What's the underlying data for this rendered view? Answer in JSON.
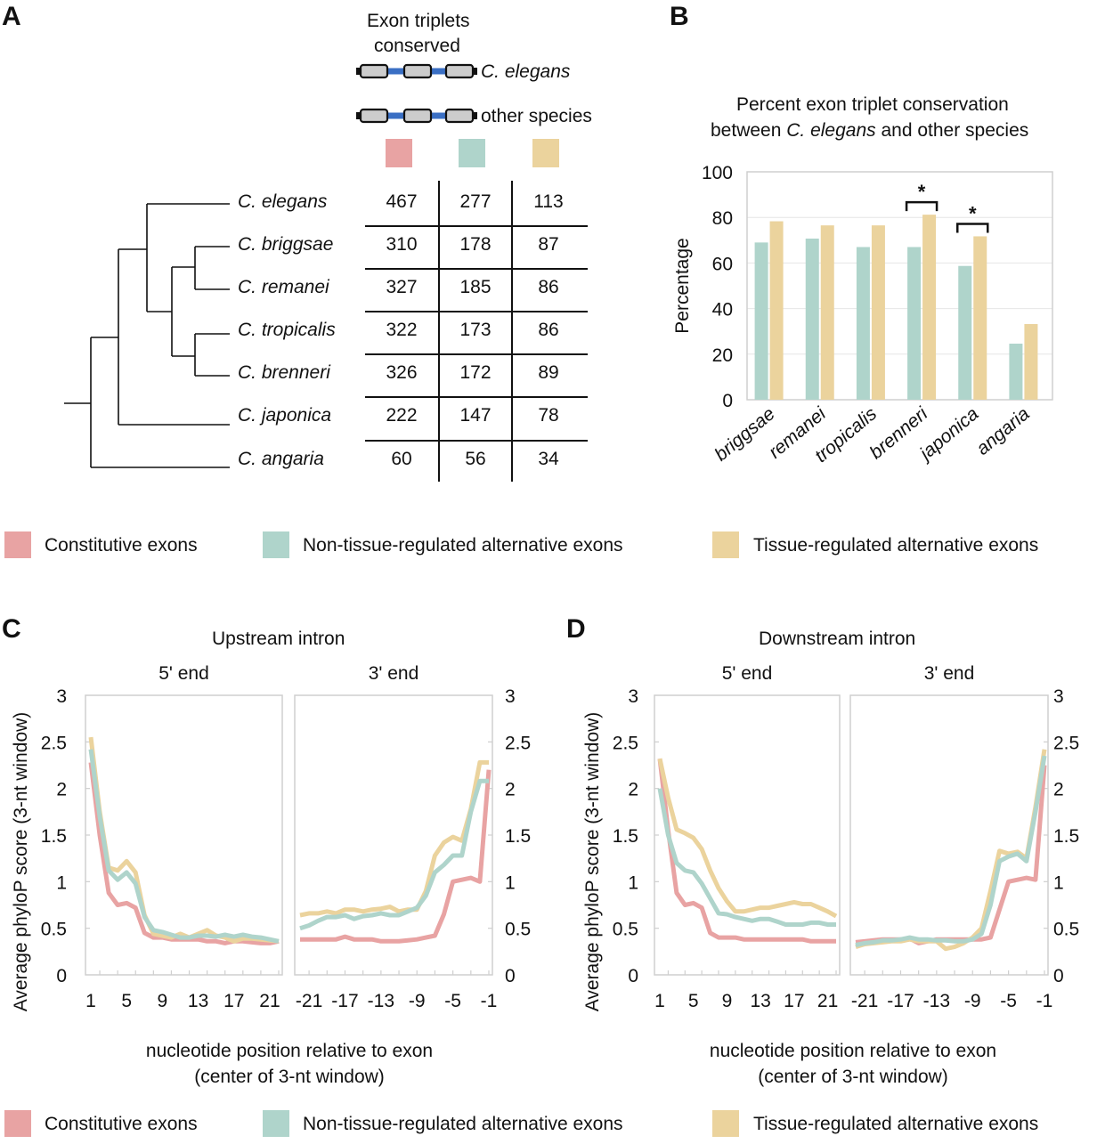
{
  "colors": {
    "constitutive": "#e8a3a3",
    "non_tissue": "#afd4cb",
    "tissue": "#ebd39d",
    "exon_fill": "#cccccc",
    "intron_blue": "#3a6fc4",
    "grid": "#e6e6e6",
    "frame": "#cfcfcf"
  },
  "panel_a": {
    "letter": "A",
    "header_line1": "Exon triplets",
    "header_line2": "conserved",
    "diagram_label_1": "C. elegans",
    "diagram_label_2": "other species",
    "species": [
      "C. elegans",
      "C. briggsae",
      "C. remanei",
      "C. tropicalis",
      "C. brenneri",
      "C. japonica",
      "C. angaria"
    ],
    "table": {
      "columns": [
        "Constitutive exons",
        "Non-tissue-regulated alternative exons",
        "Tissue-regulated alternative exons"
      ],
      "rows": [
        [
          467,
          277,
          113
        ],
        [
          310,
          178,
          87
        ],
        [
          327,
          185,
          86
        ],
        [
          322,
          173,
          86
        ],
        [
          326,
          172,
          89
        ],
        [
          222,
          147,
          78
        ],
        [
          60,
          56,
          34
        ]
      ]
    }
  },
  "legend": {
    "items": [
      {
        "key": "constitutive",
        "label": "Constitutive exons"
      },
      {
        "key": "non_tissue",
        "label": "Non-tissue-regulated alternative exons"
      },
      {
        "key": "tissue",
        "label": "Tissue-regulated alternative exons"
      }
    ]
  },
  "chart_data": [
    {
      "id": "B",
      "letter": "B",
      "type": "bar",
      "title_line1": "Percent exon triplet conservation",
      "title_line2_pre": "between ",
      "title_line2_it": "C. elegans",
      "title_line2_post": " and other species",
      "xlabel": "",
      "ylabel": "Percentage",
      "ylim": [
        0,
        100
      ],
      "yticks": [
        0,
        20,
        40,
        60,
        80,
        100
      ],
      "grid": true,
      "categories": [
        "briggsae",
        "remanei",
        "tropicalis",
        "brenneri",
        "japonica",
        "angaria"
      ],
      "series": [
        {
          "name": "Non-tissue-regulated alternative exons",
          "key": "non_tissue",
          "values": [
            69,
            70.7,
            67,
            67,
            58.7,
            24.6
          ]
        },
        {
          "name": "Tissue-regulated alternative exons",
          "key": "tissue",
          "values": [
            78.3,
            76.5,
            76.5,
            81.2,
            71.7,
            33.2
          ]
        }
      ],
      "annotations": [
        {
          "category": "brenneri",
          "text": "*",
          "type": "significance-bracket"
        },
        {
          "category": "japonica",
          "text": "*",
          "type": "significance-bracket"
        }
      ]
    },
    {
      "id": "C",
      "letter": "C",
      "type": "line",
      "title": "Upstream intron",
      "ylabel": "Average phyloP score (3-nt window)",
      "xlabel_line1": "nucleotide position relative to exon",
      "xlabel_line2": "(center of 3-nt window)",
      "ylim": [
        0,
        3
      ],
      "yticks": [
        0,
        0.5,
        1,
        1.5,
        2,
        2.5,
        3
      ],
      "ytick_labels": [
        "0",
        "0.5",
        "1",
        "1.5",
        "2",
        "2.5",
        "3"
      ],
      "subpanels": [
        {
          "title": "5' end",
          "x": [
            1,
            2,
            3,
            4,
            5,
            6,
            7,
            8,
            9,
            10,
            11,
            12,
            13,
            14,
            15,
            16,
            17,
            18,
            19,
            20,
            21,
            22
          ],
          "xtick_labels": [
            "1",
            "5",
            "9",
            "13",
            "17",
            "21"
          ],
          "xtick_values": [
            1,
            5,
            9,
            13,
            17,
            21
          ],
          "series": [
            {
              "key": "constitutive",
              "values": [
                2.28,
                1.5,
                0.88,
                0.75,
                0.77,
                0.72,
                0.45,
                0.4,
                0.4,
                0.38,
                0.38,
                0.38,
                0.38,
                0.36,
                0.36,
                0.34,
                0.36,
                0.36,
                0.35,
                0.34,
                0.34,
                0.36
              ]
            },
            {
              "key": "tissue",
              "values": [
                2.55,
                1.75,
                1.15,
                1.12,
                1.22,
                1.1,
                0.64,
                0.44,
                0.42,
                0.4,
                0.44,
                0.4,
                0.44,
                0.48,
                0.42,
                0.4,
                0.36,
                0.39,
                0.39,
                0.38,
                0.37,
                0.36
              ]
            },
            {
              "key": "non_tissue",
              "values": [
                2.42,
                1.7,
                1.12,
                1.02,
                1.1,
                0.98,
                0.62,
                0.48,
                0.46,
                0.43,
                0.4,
                0.4,
                0.42,
                0.42,
                0.41,
                0.43,
                0.41,
                0.43,
                0.41,
                0.4,
                0.38,
                0.36
              ]
            }
          ]
        },
        {
          "title": "3' end",
          "x": [
            -22,
            -21,
            -20,
            -19,
            -18,
            -17,
            -16,
            -15,
            -14,
            -13,
            -12,
            -11,
            -10,
            -9,
            -8,
            -7,
            -6,
            -5,
            -4,
            -3,
            -2,
            -1
          ],
          "xtick_labels": [
            "-21",
            "-17",
            "-13",
            "-9",
            "-5",
            "-1"
          ],
          "xtick_values": [
            -21,
            -17,
            -13,
            -9,
            -5,
            -1
          ],
          "series": [
            {
              "key": "constitutive",
              "values": [
                0.38,
                0.38,
                0.38,
                0.38,
                0.38,
                0.41,
                0.38,
                0.38,
                0.38,
                0.36,
                0.36,
                0.36,
                0.37,
                0.38,
                0.4,
                0.42,
                0.65,
                1.0,
                1.02,
                1.04,
                1.0,
                2.2
              ]
            },
            {
              "key": "tissue",
              "values": [
                0.64,
                0.66,
                0.66,
                0.68,
                0.66,
                0.7,
                0.7,
                0.68,
                0.7,
                0.71,
                0.73,
                0.68,
                0.7,
                0.7,
                0.9,
                1.28,
                1.42,
                1.48,
                1.44,
                1.78,
                2.28,
                2.28
              ]
            },
            {
              "key": "non_tissue",
              "values": [
                0.5,
                0.53,
                0.58,
                0.62,
                0.62,
                0.64,
                0.6,
                0.63,
                0.64,
                0.66,
                0.64,
                0.64,
                0.68,
                0.72,
                0.85,
                1.1,
                1.18,
                1.28,
                1.28,
                1.75,
                2.08,
                2.08
              ]
            }
          ]
        }
      ]
    },
    {
      "id": "D",
      "letter": "D",
      "type": "line",
      "title": "Downstream intron",
      "ylabel": "Average phyloP score (3-nt window)",
      "xlabel_line1": "nucleotide position relative to exon",
      "xlabel_line2": "(center of 3-nt window)",
      "ylim": [
        0,
        3
      ],
      "yticks": [
        0,
        0.5,
        1,
        1.5,
        2,
        2.5,
        3
      ],
      "ytick_labels": [
        "0",
        "0.5",
        "1",
        "1.5",
        "2",
        "2.5",
        "3"
      ],
      "subpanels": [
        {
          "title": "5' end",
          "x": [
            1,
            2,
            3,
            4,
            5,
            6,
            7,
            8,
            9,
            10,
            11,
            12,
            13,
            14,
            15,
            16,
            17,
            18,
            19,
            20,
            21,
            22
          ],
          "xtick_labels": [
            "1",
            "5",
            "9",
            "13",
            "17",
            "21"
          ],
          "xtick_values": [
            1,
            5,
            9,
            13,
            17,
            21
          ],
          "series": [
            {
              "key": "constitutive",
              "values": [
                2.32,
                1.55,
                0.88,
                0.75,
                0.77,
                0.72,
                0.45,
                0.4,
                0.4,
                0.4,
                0.38,
                0.38,
                0.38,
                0.38,
                0.38,
                0.38,
                0.38,
                0.38,
                0.36,
                0.36,
                0.36,
                0.36
              ]
            },
            {
              "key": "non_tissue",
              "values": [
                2.0,
                1.5,
                1.2,
                1.12,
                1.1,
                0.98,
                0.82,
                0.66,
                0.65,
                0.62,
                0.6,
                0.58,
                0.6,
                0.6,
                0.57,
                0.54,
                0.54,
                0.54,
                0.56,
                0.56,
                0.54,
                0.54
              ]
            },
            {
              "key": "tissue",
              "values": [
                2.32,
                1.9,
                1.56,
                1.52,
                1.47,
                1.35,
                1.12,
                0.93,
                0.79,
                0.68,
                0.68,
                0.7,
                0.72,
                0.72,
                0.74,
                0.76,
                0.78,
                0.76,
                0.76,
                0.72,
                0.68,
                0.63
              ]
            }
          ]
        },
        {
          "title": "3' end",
          "x": [
            -22,
            -21,
            -20,
            -19,
            -18,
            -17,
            -16,
            -15,
            -14,
            -13,
            -12,
            -11,
            -10,
            -9,
            -8,
            -7,
            -6,
            -5,
            -4,
            -3,
            -2,
            -1
          ],
          "xtick_labels": [
            "-21",
            "-17",
            "-13",
            "-9",
            "-5",
            "-1"
          ],
          "xtick_values": [
            -21,
            -17,
            -13,
            -9,
            -5,
            -1
          ],
          "series": [
            {
              "key": "constitutive",
              "values": [
                0.35,
                0.36,
                0.37,
                0.38,
                0.38,
                0.38,
                0.39,
                0.34,
                0.36,
                0.38,
                0.38,
                0.38,
                0.38,
                0.38,
                0.38,
                0.4,
                0.7,
                1.0,
                1.02,
                1.04,
                1.02,
                2.25
              ]
            },
            {
              "key": "tissue",
              "values": [
                0.3,
                0.33,
                0.34,
                0.35,
                0.36,
                0.36,
                0.38,
                0.36,
                0.36,
                0.36,
                0.28,
                0.3,
                0.34,
                0.4,
                0.5,
                0.9,
                1.33,
                1.3,
                1.32,
                1.25,
                1.8,
                2.42
              ]
            },
            {
              "key": "non_tissue",
              "values": [
                0.32,
                0.34,
                0.35,
                0.37,
                0.37,
                0.38,
                0.4,
                0.38,
                0.38,
                0.37,
                0.37,
                0.36,
                0.36,
                0.38,
                0.44,
                0.75,
                1.22,
                1.27,
                1.3,
                1.22,
                1.75,
                2.35
              ]
            }
          ]
        }
      ]
    }
  ]
}
